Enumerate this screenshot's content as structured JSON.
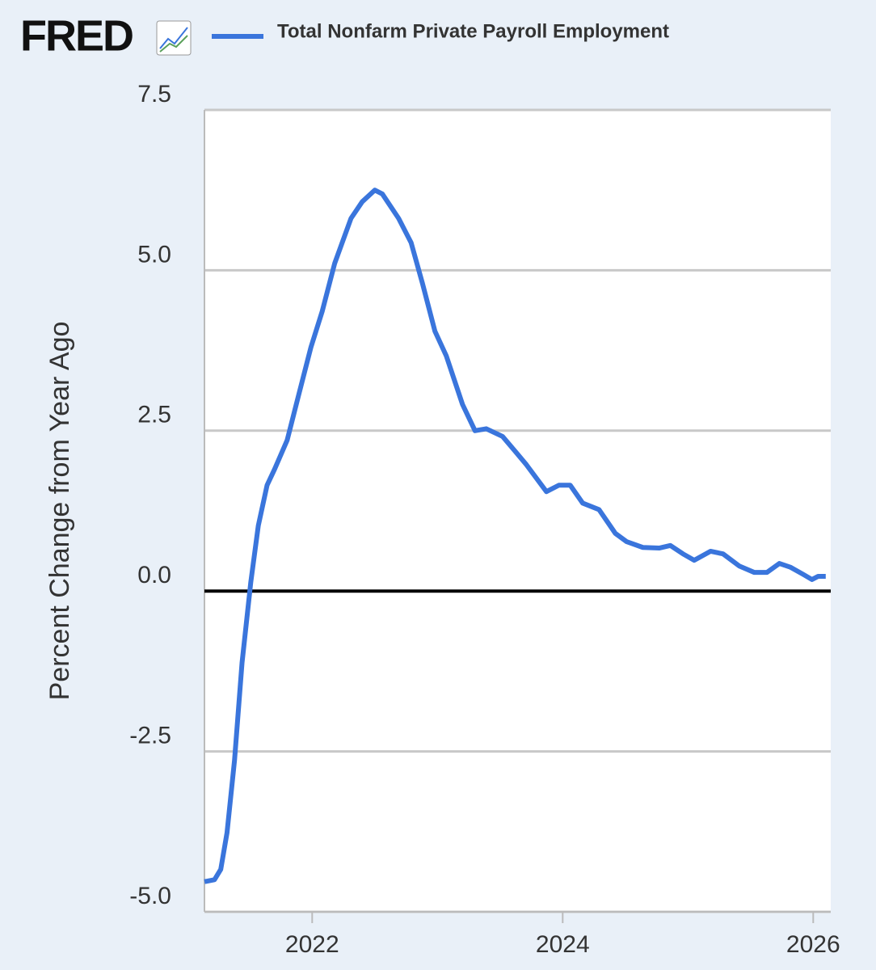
{
  "brand": "FRED",
  "chart_data": {
    "type": "line",
    "y_label": "Percent Change from Year Ago",
    "x": [
      2021.14,
      2021.22,
      2021.27,
      2021.32,
      2021.38,
      2021.44,
      2021.51,
      2021.57,
      2021.64,
      2021.7,
      2021.8,
      2021.89,
      2021.99,
      2022.08,
      2022.18,
      2022.31,
      2022.4,
      2022.5,
      2022.56,
      2022.69,
      2022.79,
      2022.88,
      2022.98,
      2023.07,
      2023.2,
      2023.3,
      2023.39,
      2023.52,
      2023.62,
      2023.71,
      2023.87,
      2023.97,
      2024.06,
      2024.16,
      2024.29,
      2024.42,
      2024.51,
      2024.64,
      2024.77,
      2024.86,
      2024.96,
      2025.05,
      2025.18,
      2025.28,
      2025.41,
      2025.53,
      2025.63,
      2025.73,
      2025.82,
      2025.92,
      2025.99,
      2026.04,
      2026.1
    ],
    "series": [
      {
        "name": "Total Nonfarm Private Payroll Employment",
        "color": "#3a75dc",
        "values": [
          -4.53,
          -4.5,
          -4.34,
          -3.77,
          -2.64,
          -1.12,
          0.14,
          1.02,
          1.65,
          1.9,
          2.35,
          3.04,
          3.8,
          4.36,
          5.11,
          5.81,
          6.07,
          6.25,
          6.19,
          5.81,
          5.43,
          4.8,
          4.05,
          3.67,
          2.91,
          2.5,
          2.53,
          2.41,
          2.18,
          1.97,
          1.55,
          1.65,
          1.65,
          1.37,
          1.27,
          0.9,
          0.77,
          0.68,
          0.67,
          0.71,
          0.58,
          0.48,
          0.62,
          0.58,
          0.39,
          0.29,
          0.29,
          0.43,
          0.37,
          0.26,
          0.18,
          0.23,
          0.23
        ]
      }
    ],
    "xlim": [
      2021.14,
      2026.14
    ],
    "xticks": [
      2022,
      2024,
      2026
    ],
    "ylim": [
      -5,
      7.5
    ],
    "yticks": [
      {
        "value": -5,
        "label": "-5.0"
      },
      {
        "value": -2.5,
        "label": "-2.5"
      },
      {
        "value": 0,
        "label": "0.0"
      },
      {
        "value": 2.5,
        "label": "2.5"
      },
      {
        "value": 5,
        "label": "5.0"
      },
      {
        "value": 7.5,
        "label": "7.5"
      }
    ],
    "grid": true
  }
}
